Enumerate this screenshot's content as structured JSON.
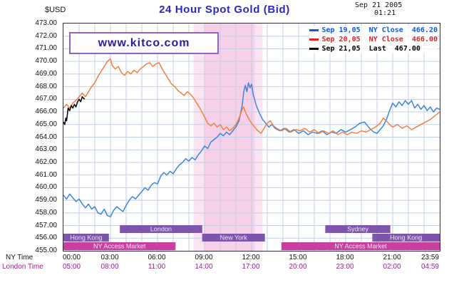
{
  "header": {
    "currency_label": "$USD",
    "title": "24 Hour Spot Gold (Bid)",
    "timestamp_date": "Sep 21 2005",
    "timestamp_time": "01:21"
  },
  "watermark": "www.kitco.com",
  "legend": [
    {
      "label": "Sep 19,05  NY Close  466.20",
      "color": "#1257d6"
    },
    {
      "label": "Sep 20,05  NY Close  466.00",
      "color": "#e02424"
    },
    {
      "label": "Sep 21,05  Last  467.00",
      "color": "#000000"
    }
  ],
  "axes": {
    "ny_time_label": "NY Time",
    "london_time_label": "London Time"
  },
  "style": {
    "grid_color": "#c2cde4",
    "plot_border_color": "#2e2e3e",
    "title_color": "#2a28c4",
    "london_row_color": "#9b209b",
    "session_bar_color": "#7d55ab",
    "access_bar_color": "#c93f9f",
    "highlight_color": "#f6cfe8"
  },
  "chart_data": {
    "type": "line",
    "title": "24 Hour Spot Gold (Bid)",
    "ylabel": "$USD",
    "ylim": [
      455,
      473
    ],
    "y_step": 1,
    "x_unit": "hours",
    "xlim": [
      0,
      24
    ],
    "grid": true,
    "legend_position": "top-right",
    "x_tick_hours": [
      0,
      3,
      6,
      9,
      12,
      15,
      18,
      21,
      24
    ],
    "x_tick_labels_ny": [
      "00:00",
      "03:00",
      "06:00",
      "09:00",
      "12:00",
      "15:00",
      "18:00",
      "21:00",
      "23:59"
    ],
    "x_tick_labels_london": [
      "05:00",
      "08:00",
      "11:00",
      "14:00",
      "17:00",
      "20:00",
      "23:00",
      "02:00",
      "04:59"
    ],
    "highlight_bands": [
      {
        "start": 8.3,
        "end": 12.7,
        "color": "#fbe4f2"
      },
      {
        "start": 9.0,
        "end": 12.2,
        "color": "#f6cfe8"
      }
    ],
    "sessions": [
      {
        "label": "London",
        "row": 0,
        "start": 3.6,
        "end": 8.85,
        "color": "#7d55ab"
      },
      {
        "label": "Sydney",
        "row": 0,
        "start": 16.7,
        "end": 20.85,
        "color": "#7d55ab"
      },
      {
        "label": "Hong Kong",
        "row": 1,
        "start": 0.0,
        "end": 2.9,
        "color": "#7d55ab"
      },
      {
        "label": "New York",
        "row": 1,
        "start": 8.85,
        "end": 12.85,
        "color": "#7d55ab"
      },
      {
        "label": "Hong Kong",
        "row": 1,
        "start": 19.7,
        "end": 24.0,
        "color": "#7d55ab"
      },
      {
        "label": "NY Access Market",
        "row": 2,
        "start": 0.0,
        "end": 7.15,
        "color": "#c93f9f"
      },
      {
        "label": "NY Access Market",
        "row": 2,
        "start": 13.9,
        "end": 24.0,
        "color": "#c93f9f"
      }
    ],
    "series": [
      {
        "name": "Sep 19,05 NY Close 466.20",
        "close": 466.2,
        "color": "#3c85dc",
        "points": [
          [
            0,
            459.4
          ],
          [
            0.2,
            459.1
          ],
          [
            0.4,
            459.5
          ],
          [
            0.6,
            459.2
          ],
          [
            0.8,
            458.9
          ],
          [
            1.0,
            459.1
          ],
          [
            1.2,
            458.7
          ],
          [
            1.4,
            458.4
          ],
          [
            1.6,
            458.7
          ],
          [
            1.8,
            458.3
          ],
          [
            2.0,
            458.5
          ],
          [
            2.2,
            458.0
          ],
          [
            2.4,
            457.9
          ],
          [
            2.6,
            458.3
          ],
          [
            2.8,
            457.8
          ],
          [
            3.0,
            457.7
          ],
          [
            3.2,
            458.2
          ],
          [
            3.4,
            458.5
          ],
          [
            3.6,
            458.3
          ],
          [
            3.8,
            458.1
          ],
          [
            4.0,
            458.6
          ],
          [
            4.2,
            459.0
          ],
          [
            4.4,
            459.3
          ],
          [
            4.6,
            459.1
          ],
          [
            4.8,
            459.4
          ],
          [
            5.0,
            459.7
          ],
          [
            5.2,
            460.0
          ],
          [
            5.4,
            459.8
          ],
          [
            5.6,
            460.2
          ],
          [
            5.8,
            460.4
          ],
          [
            6.0,
            460.3
          ],
          [
            6.2,
            460.9
          ],
          [
            6.4,
            461.2
          ],
          [
            6.6,
            461.0
          ],
          [
            6.8,
            461.3
          ],
          [
            7.0,
            461.1
          ],
          [
            7.2,
            461.5
          ],
          [
            7.4,
            461.8
          ],
          [
            7.6,
            462.0
          ],
          [
            7.8,
            462.3
          ],
          [
            8.0,
            462.1
          ],
          [
            8.2,
            462.4
          ],
          [
            8.4,
            462.2
          ],
          [
            8.6,
            462.6
          ],
          [
            8.8,
            462.9
          ],
          [
            9.0,
            463.3
          ],
          [
            9.2,
            463.1
          ],
          [
            9.4,
            463.6
          ],
          [
            9.6,
            463.8
          ],
          [
            9.8,
            464.0
          ],
          [
            10.0,
            464.3
          ],
          [
            10.2,
            464.1
          ],
          [
            10.4,
            464.4
          ],
          [
            10.6,
            464.2
          ],
          [
            10.8,
            464.5
          ],
          [
            11.0,
            464.8
          ],
          [
            11.2,
            465.3
          ],
          [
            11.4,
            466.5
          ],
          [
            11.5,
            467.6
          ],
          [
            11.6,
            468.1
          ],
          [
            11.7,
            467.6
          ],
          [
            11.8,
            468.3
          ],
          [
            11.9,
            467.9
          ],
          [
            12.0,
            468.2
          ],
          [
            12.1,
            467.4
          ],
          [
            12.3,
            466.5
          ],
          [
            12.5,
            465.9
          ],
          [
            12.7,
            465.4
          ],
          [
            12.9,
            465.1
          ],
          [
            13.1,
            464.8
          ],
          [
            13.3,
            465.0
          ],
          [
            13.5,
            464.7
          ],
          [
            13.8,
            464.5
          ],
          [
            14.1,
            464.7
          ],
          [
            14.4,
            464.4
          ],
          [
            14.7,
            464.6
          ],
          [
            15.0,
            464.3
          ],
          [
            15.3,
            464.5
          ],
          [
            15.6,
            464.2
          ],
          [
            15.9,
            464.4
          ],
          [
            16.2,
            464.3
          ],
          [
            16.5,
            464.5
          ],
          [
            16.8,
            464.2
          ],
          [
            17.1,
            464.4
          ],
          [
            17.4,
            464.3
          ],
          [
            17.7,
            464.6
          ],
          [
            18.0,
            464.4
          ],
          [
            18.3,
            464.6
          ],
          [
            18.6,
            464.8
          ],
          [
            18.9,
            465.1
          ],
          [
            19.2,
            465.2
          ],
          [
            19.4,
            464.9
          ],
          [
            19.6,
            464.6
          ],
          [
            19.8,
            464.4
          ],
          [
            20.0,
            464.3
          ],
          [
            20.2,
            464.6
          ],
          [
            20.4,
            464.9
          ],
          [
            20.6,
            465.4
          ],
          [
            20.8,
            466.1
          ],
          [
            21.0,
            466.7
          ],
          [
            21.2,
            466.4
          ],
          [
            21.4,
            466.8
          ],
          [
            21.6,
            466.5
          ],
          [
            21.8,
            466.9
          ],
          [
            22.0,
            466.6
          ],
          [
            22.2,
            466.9
          ],
          [
            22.4,
            466.3
          ],
          [
            22.6,
            466.6
          ],
          [
            22.8,
            466.2
          ],
          [
            23.0,
            466.5
          ],
          [
            23.2,
            466.1
          ],
          [
            23.4,
            466.4
          ],
          [
            23.6,
            466.0
          ],
          [
            23.8,
            466.3
          ],
          [
            24,
            466.2
          ]
        ]
      },
      {
        "name": "Sep 20,05 NY Close 466.00",
        "close": 466.0,
        "color": "#f08040",
        "points": [
          [
            0,
            466.3
          ],
          [
            0.2,
            466.6
          ],
          [
            0.4,
            466.3
          ],
          [
            0.6,
            466.7
          ],
          [
            0.8,
            466.9
          ],
          [
            1.0,
            467.2
          ],
          [
            1.2,
            467.5
          ],
          [
            1.4,
            467.2
          ],
          [
            1.6,
            467.6
          ],
          [
            1.8,
            468.0
          ],
          [
            2.0,
            468.3
          ],
          [
            2.2,
            468.8
          ],
          [
            2.4,
            469.2
          ],
          [
            2.6,
            469.6
          ],
          [
            2.8,
            470.0
          ],
          [
            3.0,
            470.2
          ],
          [
            3.1,
            469.7
          ],
          [
            3.3,
            469.4
          ],
          [
            3.5,
            469.6
          ],
          [
            3.7,
            469.1
          ],
          [
            3.9,
            468.9
          ],
          [
            4.1,
            469.2
          ],
          [
            4.3,
            469.0
          ],
          [
            4.5,
            469.3
          ],
          [
            4.7,
            469.1
          ],
          [
            4.9,
            469.4
          ],
          [
            5.1,
            469.6
          ],
          [
            5.3,
            469.8
          ],
          [
            5.5,
            469.9
          ],
          [
            5.7,
            469.6
          ],
          [
            5.9,
            469.8
          ],
          [
            6.1,
            469.9
          ],
          [
            6.3,
            469.4
          ],
          [
            6.5,
            469.0
          ],
          [
            6.7,
            468.6
          ],
          [
            6.9,
            468.2
          ],
          [
            7.1,
            468.0
          ],
          [
            7.3,
            467.7
          ],
          [
            7.5,
            467.5
          ],
          [
            7.7,
            467.3
          ],
          [
            7.9,
            467.6
          ],
          [
            8.1,
            467.4
          ],
          [
            8.3,
            467.1
          ],
          [
            8.5,
            466.7
          ],
          [
            8.7,
            466.3
          ],
          [
            9.0,
            465.6
          ],
          [
            9.2,
            465.1
          ],
          [
            9.4,
            464.9
          ],
          [
            9.6,
            465.1
          ],
          [
            9.8,
            464.8
          ],
          [
            10.0,
            465.0
          ],
          [
            10.2,
            464.6
          ],
          [
            10.4,
            464.8
          ],
          [
            10.6,
            464.5
          ],
          [
            10.8,
            464.7
          ],
          [
            11.0,
            465.0
          ],
          [
            11.2,
            465.5
          ],
          [
            11.4,
            466.2
          ],
          [
            11.5,
            466.4
          ],
          [
            11.6,
            466.0
          ],
          [
            11.8,
            465.5
          ],
          [
            12.0,
            465.1
          ],
          [
            12.2,
            464.8
          ],
          [
            12.4,
            464.5
          ],
          [
            12.6,
            464.3
          ],
          [
            12.8,
            464.7
          ],
          [
            13.0,
            465.1
          ],
          [
            13.2,
            465.3
          ],
          [
            13.4,
            464.9
          ],
          [
            13.6,
            464.7
          ],
          [
            13.9,
            464.5
          ],
          [
            14.2,
            464.7
          ],
          [
            14.5,
            464.4
          ],
          [
            14.8,
            464.6
          ],
          [
            15.1,
            464.5
          ],
          [
            15.4,
            464.7
          ],
          [
            15.7,
            464.4
          ],
          [
            16.0,
            464.6
          ],
          [
            16.3,
            464.3
          ],
          [
            16.6,
            464.5
          ],
          [
            16.9,
            464.3
          ],
          [
            17.2,
            464.5
          ],
          [
            17.5,
            464.2
          ],
          [
            17.8,
            464.4
          ],
          [
            18.1,
            464.2
          ],
          [
            18.4,
            464.4
          ],
          [
            18.7,
            464.3
          ],
          [
            19.0,
            464.5
          ],
          [
            19.3,
            464.4
          ],
          [
            19.6,
            464.6
          ],
          [
            19.9,
            464.8
          ],
          [
            20.2,
            465.1
          ],
          [
            20.4,
            465.5
          ],
          [
            20.6,
            465.3
          ],
          [
            20.8,
            465.0
          ],
          [
            21.0,
            464.8
          ],
          [
            21.3,
            465.0
          ],
          [
            21.6,
            464.7
          ],
          [
            21.9,
            464.9
          ],
          [
            22.2,
            464.6
          ],
          [
            22.5,
            464.8
          ],
          [
            22.8,
            465.0
          ],
          [
            23.1,
            465.2
          ],
          [
            23.4,
            465.4
          ],
          [
            23.7,
            465.7
          ],
          [
            24,
            466.0
          ]
        ]
      },
      {
        "name": "Sep 21,05 Last 467.00",
        "close": 467.0,
        "color": "#000000",
        "points": [
          [
            0,
            465.2
          ],
          [
            0.08,
            465.0
          ],
          [
            0.15,
            465.5
          ],
          [
            0.2,
            465.3
          ],
          [
            0.3,
            466.3
          ],
          [
            0.4,
            466.1
          ],
          [
            0.5,
            466.5
          ],
          [
            0.6,
            466.3
          ],
          [
            0.7,
            466.6
          ],
          [
            0.8,
            466.4
          ],
          [
            0.9,
            466.8
          ],
          [
            1.0,
            467.0
          ],
          [
            1.1,
            466.8
          ],
          [
            1.2,
            467.2
          ],
          [
            1.35,
            467.0
          ]
        ]
      }
    ]
  }
}
